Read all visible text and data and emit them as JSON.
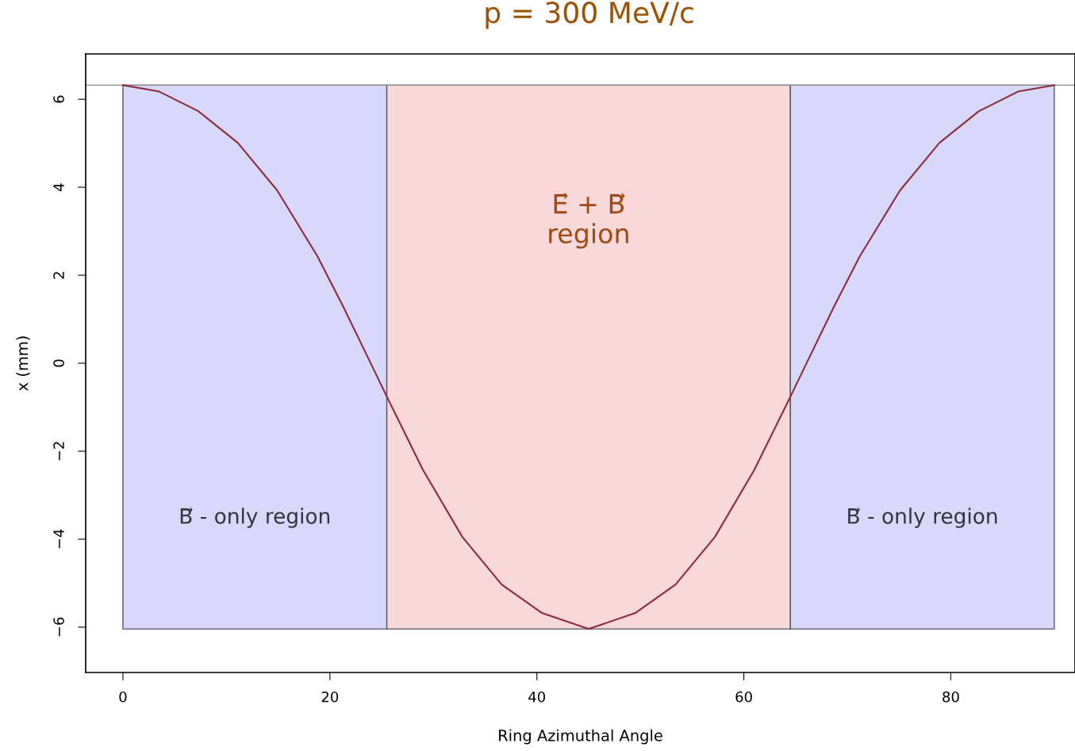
{
  "chart_data": {
    "type": "line",
    "title": "p = 300 MeV/c",
    "xlabel": "Ring Azimuthal Angle",
    "ylabel": "x (mm)",
    "x": [
      0,
      3.45,
      7.28,
      11.1,
      14.9,
      18.8,
      21.3,
      23.9,
      25.5,
      29.0,
      32.8,
      36.6,
      40.5,
      45.0,
      49.5,
      53.4,
      57.2,
      61.0,
      64.5,
      66.1,
      68.7,
      71.2,
      75.1,
      78.9,
      82.72,
      86.55,
      90
    ],
    "series": [
      {
        "color": "#8e2a3c",
        "values": [
          6.32,
          6.18,
          5.73,
          5.01,
          3.93,
          2.43,
          1.28,
          0.02,
          -0.76,
          -2.43,
          -3.95,
          -5.03,
          -5.68,
          -6.04,
          -5.68,
          -5.03,
          -3.95,
          -2.43,
          -0.76,
          0.02,
          1.28,
          2.43,
          3.93,
          5.01,
          5.73,
          6.18,
          6.32
        ]
      }
    ],
    "xlim": [
      -3.6,
      92
    ],
    "ylim": [
      -7.03,
      7.03
    ],
    "xticks": [
      0,
      20,
      40,
      60,
      80
    ],
    "yticks": [
      -6,
      -4,
      -2,
      0,
      2,
      4,
      6
    ],
    "ref_lines": [
      {
        "axis": "y",
        "value": 6.32,
        "color": "#888888"
      }
    ],
    "bands": [
      {
        "axis": "x",
        "from": 0,
        "to": 25.5,
        "label": "B⃗ - only region",
        "color": "#d8d8fa"
      },
      {
        "axis": "x",
        "from": 25.5,
        "to": 64.5,
        "label": "E⃗ + B⃗\nregion",
        "color": "#f8d8d8"
      },
      {
        "axis": "x",
        "from": 64.5,
        "to": 90,
        "label": "B⃗ - only region",
        "color": "#d8d8fa"
      }
    ],
    "grid": false,
    "legend": false
  }
}
